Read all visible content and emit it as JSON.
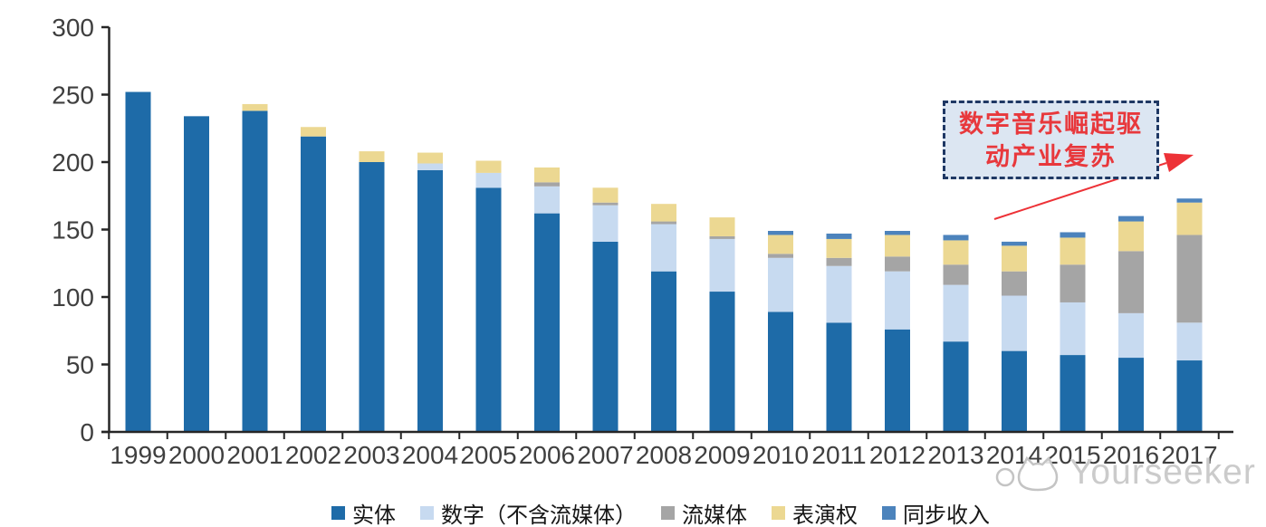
{
  "chart_data": {
    "type": "bar",
    "stacked": true,
    "title": "",
    "xlabel": "",
    "ylabel": "",
    "ylim": [
      0,
      300
    ],
    "yticks": [
      0,
      50,
      100,
      150,
      200,
      250,
      300
    ],
    "grid": false,
    "legend_position": "bottom",
    "categories": [
      "1999",
      "2000",
      "2001",
      "2002",
      "2003",
      "2004",
      "2005",
      "2006",
      "2007",
      "2008",
      "2009",
      "2010",
      "2011",
      "2012",
      "2013",
      "2014",
      "2015",
      "2016",
      "2017"
    ],
    "series": [
      {
        "name": "实体",
        "color": "#1e6ba8",
        "values": [
          252,
          234,
          238,
          219,
          200,
          194,
          181,
          162,
          141,
          119,
          104,
          89,
          81,
          76,
          67,
          60,
          57,
          55,
          53
        ]
      },
      {
        "name": "数字（不含流媒体）",
        "color": "#c7daf0",
        "values": [
          0,
          0,
          0,
          0,
          0,
          5,
          11,
          20,
          27,
          35,
          39,
          40,
          42,
          43,
          42,
          41,
          39,
          33,
          28
        ]
      },
      {
        "name": "流媒体",
        "color": "#a5a5a5",
        "values": [
          0,
          0,
          0,
          0,
          0,
          0,
          0,
          3,
          2,
          2,
          2,
          3,
          6,
          11,
          15,
          18,
          28,
          46,
          65
        ]
      },
      {
        "name": "表演权",
        "color": "#ecd892",
        "values": [
          0,
          0,
          5,
          7,
          8,
          8,
          9,
          11,
          11,
          13,
          14,
          14,
          14,
          16,
          18,
          19,
          20,
          22,
          24
        ]
      },
      {
        "name": "同步收入",
        "color": "#4c83bc",
        "values": [
          0,
          0,
          0,
          0,
          0,
          0,
          0,
          0,
          0,
          0,
          0,
          3,
          4,
          3,
          4,
          3,
          4,
          4,
          3
        ]
      }
    ],
    "totals": [
      252,
      234,
      243,
      226,
      208,
      207,
      201,
      196,
      181,
      169,
      159,
      149,
      147,
      149,
      146,
      141,
      148,
      160,
      173
    ],
    "annotation": {
      "line1": "数字音乐崛起驱",
      "line2": "动产业复苏",
      "text_color": "#e8383c",
      "border_color": "#1f3864",
      "fill_color": "#dce6f2",
      "arrow_color": "#ed3237"
    },
    "axis_color": "#262626",
    "tick_label_color": "#3f3f3f"
  },
  "watermark": {
    "text": "Yourseeker",
    "color": "#cbcbcb"
  }
}
